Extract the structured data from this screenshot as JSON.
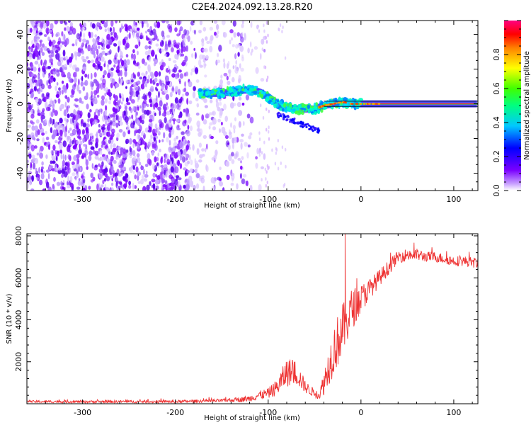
{
  "title": "C2E4.2024.092.13.28.R20",
  "chart_data": [
    {
      "type": "heatmap",
      "xlabel": "Height of straight line (km)",
      "ylabel": "Frequency (Hz)",
      "xlim": [
        -360,
        126
      ],
      "ylim": [
        -50,
        48
      ],
      "xticks": [
        -300,
        -200,
        -100,
        0,
        100
      ],
      "xtick_labels": [
        "-300",
        "-200",
        "-100",
        "0",
        "100"
      ],
      "yticks": [
        40,
        20,
        0,
        -20,
        -40
      ],
      "ytick_labels": [
        "40",
        "20",
        "0",
        "-20",
        "-40"
      ],
      "ridge_x": [
        -175,
        -150,
        -125,
        -110,
        -100,
        -90,
        -80,
        -70,
        -60,
        -50,
        -40,
        -30,
        -20,
        -10,
        0,
        20,
        50,
        100,
        126
      ],
      "ridge_y": [
        6,
        6,
        8,
        7,
        4,
        0,
        -2,
        -3,
        -3,
        -3,
        -1,
        0,
        1,
        0,
        0,
        0,
        0,
        0,
        0
      ],
      "noise_range_x": [
        -360,
        -110
      ],
      "colorbar": {
        "label": "Normalized spectral amplitude",
        "range": [
          0,
          1
        ],
        "ticks": [
          0.0,
          0.2,
          0.4,
          0.6,
          0.8
        ],
        "tick_labels": [
          "0.0",
          "0.2",
          "0.4",
          "0.6",
          "0.8"
        ],
        "colors": [
          "#ffffff",
          "#7a00ff",
          "#0000ff",
          "#00c8ff",
          "#00ff00",
          "#c8ff00",
          "#ffff00",
          "#ff8000",
          "#ff0000",
          "#ff0080"
        ]
      }
    },
    {
      "type": "line",
      "xlabel": "Height of straight line (km)",
      "ylabel": "SNR (10 * v/v)",
      "xlim": [
        -360,
        126
      ],
      "ylim": [
        0,
        8100
      ],
      "xticks": [
        -300,
        -200,
        -100,
        0,
        100
      ],
      "xtick_labels": [
        "-300",
        "-200",
        "-100",
        "0",
        "100"
      ],
      "yticks": [
        2000,
        4000,
        6000,
        8000
      ],
      "ytick_labels": [
        "2000",
        "4000",
        "6000",
        "8000"
      ],
      "line_color": "#ee3333",
      "envelope_x": [
        -360,
        -200,
        -150,
        -130,
        -120,
        -110,
        -100,
        -90,
        -80,
        -70,
        -60,
        -50,
        -45,
        -40,
        -30,
        -20,
        -10,
        0,
        10,
        20,
        30,
        40,
        50,
        60,
        70,
        80,
        90,
        100,
        110,
        126
      ],
      "envelope_y": [
        100,
        100,
        150,
        200,
        250,
        400,
        500,
        800,
        1500,
        1500,
        800,
        500,
        400,
        1000,
        2500,
        3500,
        4500,
        5000,
        5500,
        6000,
        6500,
        7000,
        7100,
        7100,
        7000,
        7000,
        6900,
        6800,
        6800,
        6700
      ],
      "envelope_amp": [
        60,
        70,
        80,
        120,
        150,
        200,
        250,
        400,
        700,
        600,
        300,
        200,
        200,
        600,
        1200,
        1300,
        1000,
        700,
        500,
        400,
        350,
        300,
        300,
        300,
        250,
        250,
        250,
        250,
        250,
        250
      ],
      "spike": {
        "x": -17,
        "y": 8100
      }
    }
  ]
}
